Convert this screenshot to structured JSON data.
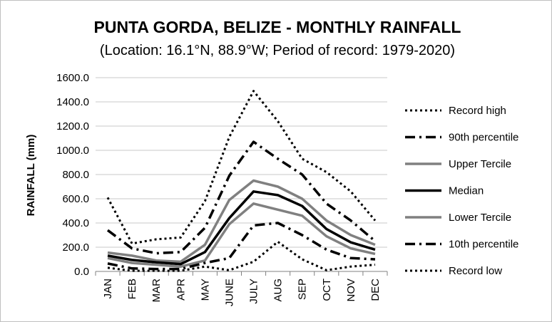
{
  "chart_data": {
    "type": "line",
    "title": "PUNTA GORDA, BELIZE - MONTHLY RAINFALL",
    "subtitle": "(Location: 16.1°N, 88.9°W; Period of record: 1979-2020)",
    "ylabel": "RAINFALL (mm)",
    "xlabel": "",
    "ylim": [
      0,
      1600
    ],
    "ytick_labels": [
      "0.0",
      "200.0",
      "400.0",
      "600.0",
      "800.0",
      "1000.0",
      "1200.0",
      "1400.0",
      "1600.0"
    ],
    "categories": [
      "JAN",
      "FEB",
      "MAR",
      "APR",
      "MAY",
      "JUNE",
      "JULY",
      "AUG",
      "SEP",
      "OCT",
      "NOV",
      "DEC"
    ],
    "grid": "horizontal",
    "legend_position": "right",
    "series": [
      {
        "name": "Record high",
        "style": "dotted",
        "color": "#000000",
        "values": [
          610,
          230,
          265,
          280,
          580,
          1110,
          1490,
          1240,
          930,
          820,
          660,
          420
        ]
      },
      {
        "name": "90th percentile",
        "style": "dashdot",
        "color": "#000000",
        "values": [
          340,
          190,
          150,
          160,
          360,
          790,
          1070,
          930,
          800,
          560,
          420,
          250
        ]
      },
      {
        "name": "Upper Tercile",
        "style": "solid-gray",
        "color": "#808080",
        "values": [
          155,
          130,
          90,
          80,
          220,
          590,
          750,
          700,
          600,
          420,
          300,
          220
        ]
      },
      {
        "name": "Median",
        "style": "solid-bold",
        "color": "#000000",
        "values": [
          130,
          95,
          75,
          60,
          160,
          440,
          660,
          630,
          540,
          350,
          240,
          180
        ]
      },
      {
        "name": "Lower Tercile",
        "style": "solid-gray",
        "color": "#808080",
        "values": [
          110,
          70,
          55,
          40,
          90,
          390,
          560,
          510,
          460,
          290,
          190,
          145
        ]
      },
      {
        "name": "10th percentile",
        "style": "dashdot",
        "color": "#000000",
        "values": [
          65,
          25,
          20,
          20,
          70,
          110,
          380,
          400,
          300,
          180,
          110,
          100
        ]
      },
      {
        "name": "Record low",
        "style": "dotted",
        "color": "#000000",
        "values": [
          30,
          5,
          5,
          5,
          40,
          10,
          80,
          245,
          100,
          10,
          40,
          55
        ]
      }
    ]
  }
}
